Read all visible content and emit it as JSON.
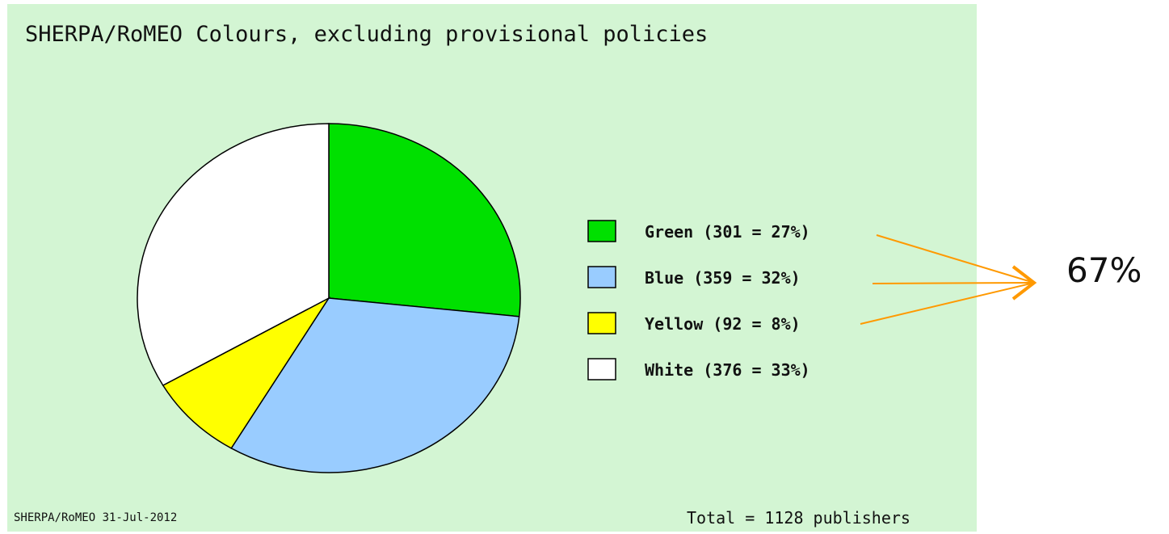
{
  "chart_data": {
    "type": "pie",
    "title": "SHERPA/RoMEO Colours, excluding provisional policies",
    "slices": [
      {
        "label": "Green (301 = 27%)",
        "value": 301,
        "color": "#00e000"
      },
      {
        "label": "Blue (359 = 32%)",
        "value": 359,
        "color": "#99ccff"
      },
      {
        "label": "Yellow (92 = 8%)",
        "value": 92,
        "color": "#ffff00"
      },
      {
        "label": "White (376 = 33%)",
        "value": 376,
        "color": "#ffffff"
      }
    ],
    "legend_position": "right",
    "footer_left": "SHERPA/RoMEO 31-Jul-2012",
    "footer_right": "Total = 1128 publishers"
  },
  "annotation": {
    "text": "67%",
    "color": "#ff9900"
  }
}
